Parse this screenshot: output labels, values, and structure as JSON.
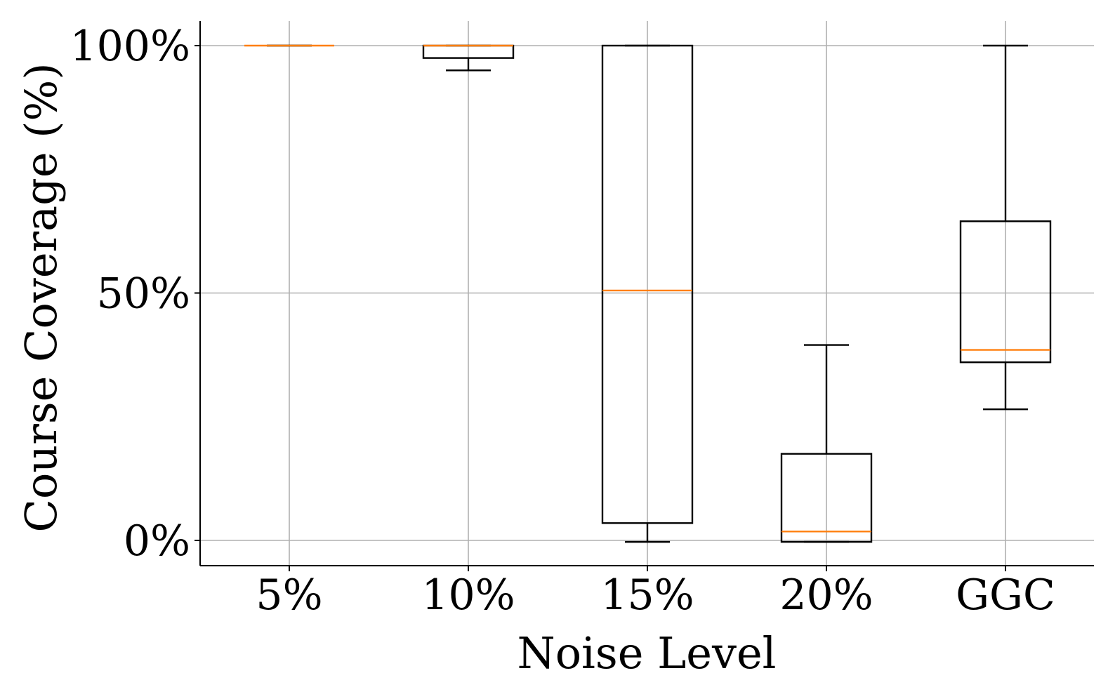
{
  "chart_data": {
    "type": "box",
    "title": "",
    "xlabel": "Noise Level",
    "ylabel": "Course Coverage (%)",
    "categories": [
      "5%",
      "10%",
      "15%",
      "20%",
      "GGC"
    ],
    "yticks": [
      0,
      50,
      100
    ],
    "ytick_labels": [
      "0%",
      "50%",
      "100%"
    ],
    "ylim": [
      -5.5,
      105
    ],
    "grid": true,
    "colors": {
      "box": "#000000",
      "median": "#ff7f0e",
      "grid": "#b0b0b0"
    },
    "boxes": [
      {
        "category": "5%",
        "whisker_low": 100,
        "q1": 100,
        "median": 100,
        "q3": 100,
        "whisker_high": 100
      },
      {
        "category": "10%",
        "whisker_low": 95,
        "q1": 97.5,
        "median": 100,
        "q3": 100,
        "whisker_high": 100
      },
      {
        "category": "15%",
        "whisker_low": -0.3,
        "q1": 3.5,
        "median": 50.5,
        "q3": 100,
        "whisker_high": 100
      },
      {
        "category": "20%",
        "whisker_low": -0.3,
        "q1": -0.3,
        "median": 1.8,
        "q3": 17.5,
        "whisker_high": 39.5
      },
      {
        "category": "GGC",
        "whisker_low": 26.5,
        "q1": 36,
        "median": 38.5,
        "q3": 64.5,
        "whisker_high": 100
      }
    ]
  }
}
